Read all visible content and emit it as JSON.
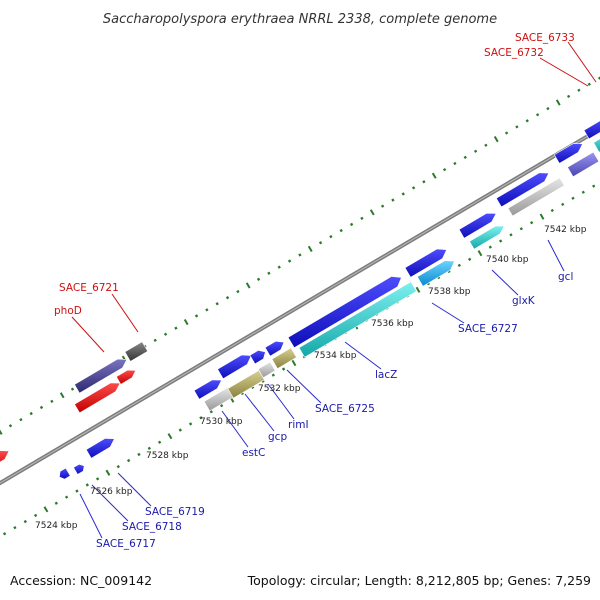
{
  "title": "Saccharopolyspora erythraea NRRL 2338, complete genome",
  "footer": {
    "accession": "Accession: NC_009142",
    "summary": "Topology: circular; Length: 8,212,805 bp; Genes: 7,259"
  },
  "ticks": [
    "7524 kbp",
    "7526 kbp",
    "7528 kbp",
    "7530 kbp",
    "7532 kbp",
    "7534 kbp",
    "7536 kbp",
    "7538 kbp",
    "7540 kbp",
    "7542 kbp"
  ],
  "gene_labels_blue": [
    "SACE_6717",
    "SACE_6718",
    "SACE_6719",
    "estC",
    "gcp",
    "rimI",
    "SACE_6725",
    "lacZ",
    "SACE_6727",
    "glxK",
    "gcl"
  ],
  "gene_labels_red": [
    "phoD",
    "SACE_6721",
    "SACE_6732",
    "SACE_6733"
  ],
  "colors": {
    "cds_forward": "#1515e0",
    "cds_reverse": "#ee1111",
    "feature_purple": "#4a4490",
    "feature_gray": "#555555",
    "feature_cyan": "#22c8c8",
    "feature_olive": "#b0a860",
    "feature_lightgray": "#b8b8b8",
    "feature_skyblue": "#22aaf0",
    "feature_slate": "#6a66d0",
    "backbone": "#888888",
    "tick_green": "#2a7a2a"
  }
}
